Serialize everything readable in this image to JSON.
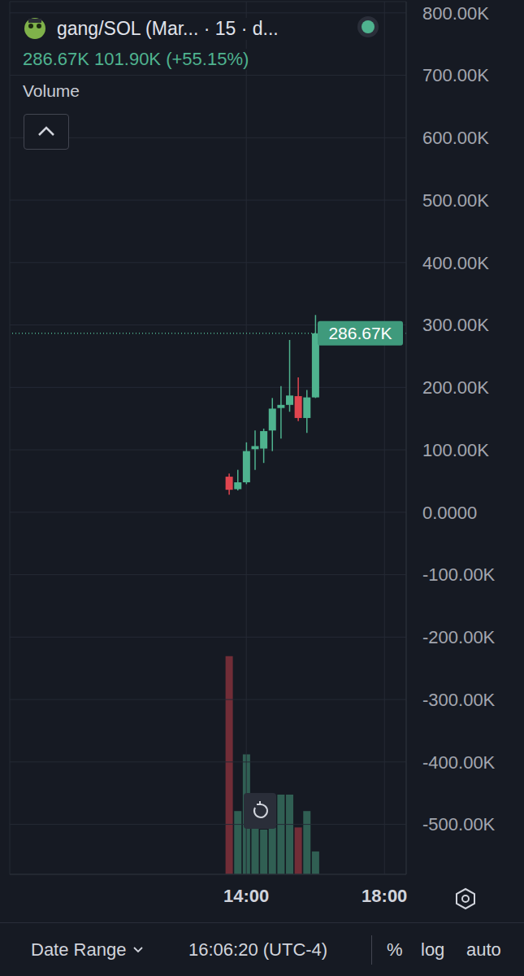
{
  "chart_data": {
    "type": "candlestick",
    "title": "gang/SOL (Mar... · 15 · d...",
    "subtitle": "286.67K 101.90K (+55.15%)",
    "volume_label": "Volume",
    "toolbar": [
      "Date Range",
      "16:06:20 (UTC-4)",
      "%",
      "log",
      "auto"
    ],
    "x": [
      13.5,
      13.75,
      14,
      14.25,
      14.5,
      14.75,
      15,
      15.25,
      15.5,
      15.75,
      16
    ],
    "open": [
      57000,
      37000,
      48000,
      101000,
      102000,
      131000,
      167000,
      172000,
      186000,
      151000,
      184000
    ],
    "high": [
      62000,
      68000,
      112000,
      131000,
      134000,
      183000,
      202000,
      276000,
      216000,
      196000,
      316000
    ],
    "low": [
      28000,
      35000,
      45000,
      68000,
      79000,
      98000,
      118000,
      161000,
      146000,
      127000,
      183000
    ],
    "close": [
      36000,
      48000,
      98000,
      106000,
      130000,
      166000,
      172000,
      187000,
      151000,
      184000,
      286670
    ],
    "colors": [
      "#e0454f",
      "#4fb38f",
      "#4fb38f",
      "#4fb38f",
      "#4fb38f",
      "#4fb38f",
      "#4fb38f",
      "#4fb38f",
      "#e0454f",
      "#4fb38f",
      "#4fb38f"
    ],
    "volume": [
      200,
      58,
      110,
      58,
      41,
      43,
      73,
      73,
      43,
      58,
      21
    ],
    "volume_lim": [
      0,
      800
    ],
    "price_line": {
      "value": 286670,
      "label": "286.67K"
    },
    "xlim": [
      7.15,
      18.63
    ],
    "xticks": [
      {
        "value": 14,
        "label": "14:00"
      },
      {
        "value": 18,
        "label": "18:00"
      }
    ],
    "ylim": [
      -580000,
      818000
    ],
    "yticks": [
      {
        "value": 800000,
        "label": "800.00K"
      },
      {
        "value": 700000,
        "label": "700.00K"
      },
      {
        "value": 600000,
        "label": "600.00K"
      },
      {
        "value": 500000,
        "label": "500.00K"
      },
      {
        "value": 400000,
        "label": "400.00K"
      },
      {
        "value": 300000,
        "label": "300.00K"
      },
      {
        "value": 200000,
        "label": "200.00K"
      },
      {
        "value": 100000,
        "label": "100.00K"
      },
      {
        "value": 0,
        "label": "0.0000"
      },
      {
        "value": -100000,
        "label": "-100.00K"
      },
      {
        "value": -200000,
        "label": "-200.00K"
      },
      {
        "value": -300000,
        "label": "-300.00K"
      },
      {
        "value": -400000,
        "label": "-400.00K"
      },
      {
        "value": -500000,
        "label": "-500.00K"
      }
    ],
    "grid": true
  }
}
